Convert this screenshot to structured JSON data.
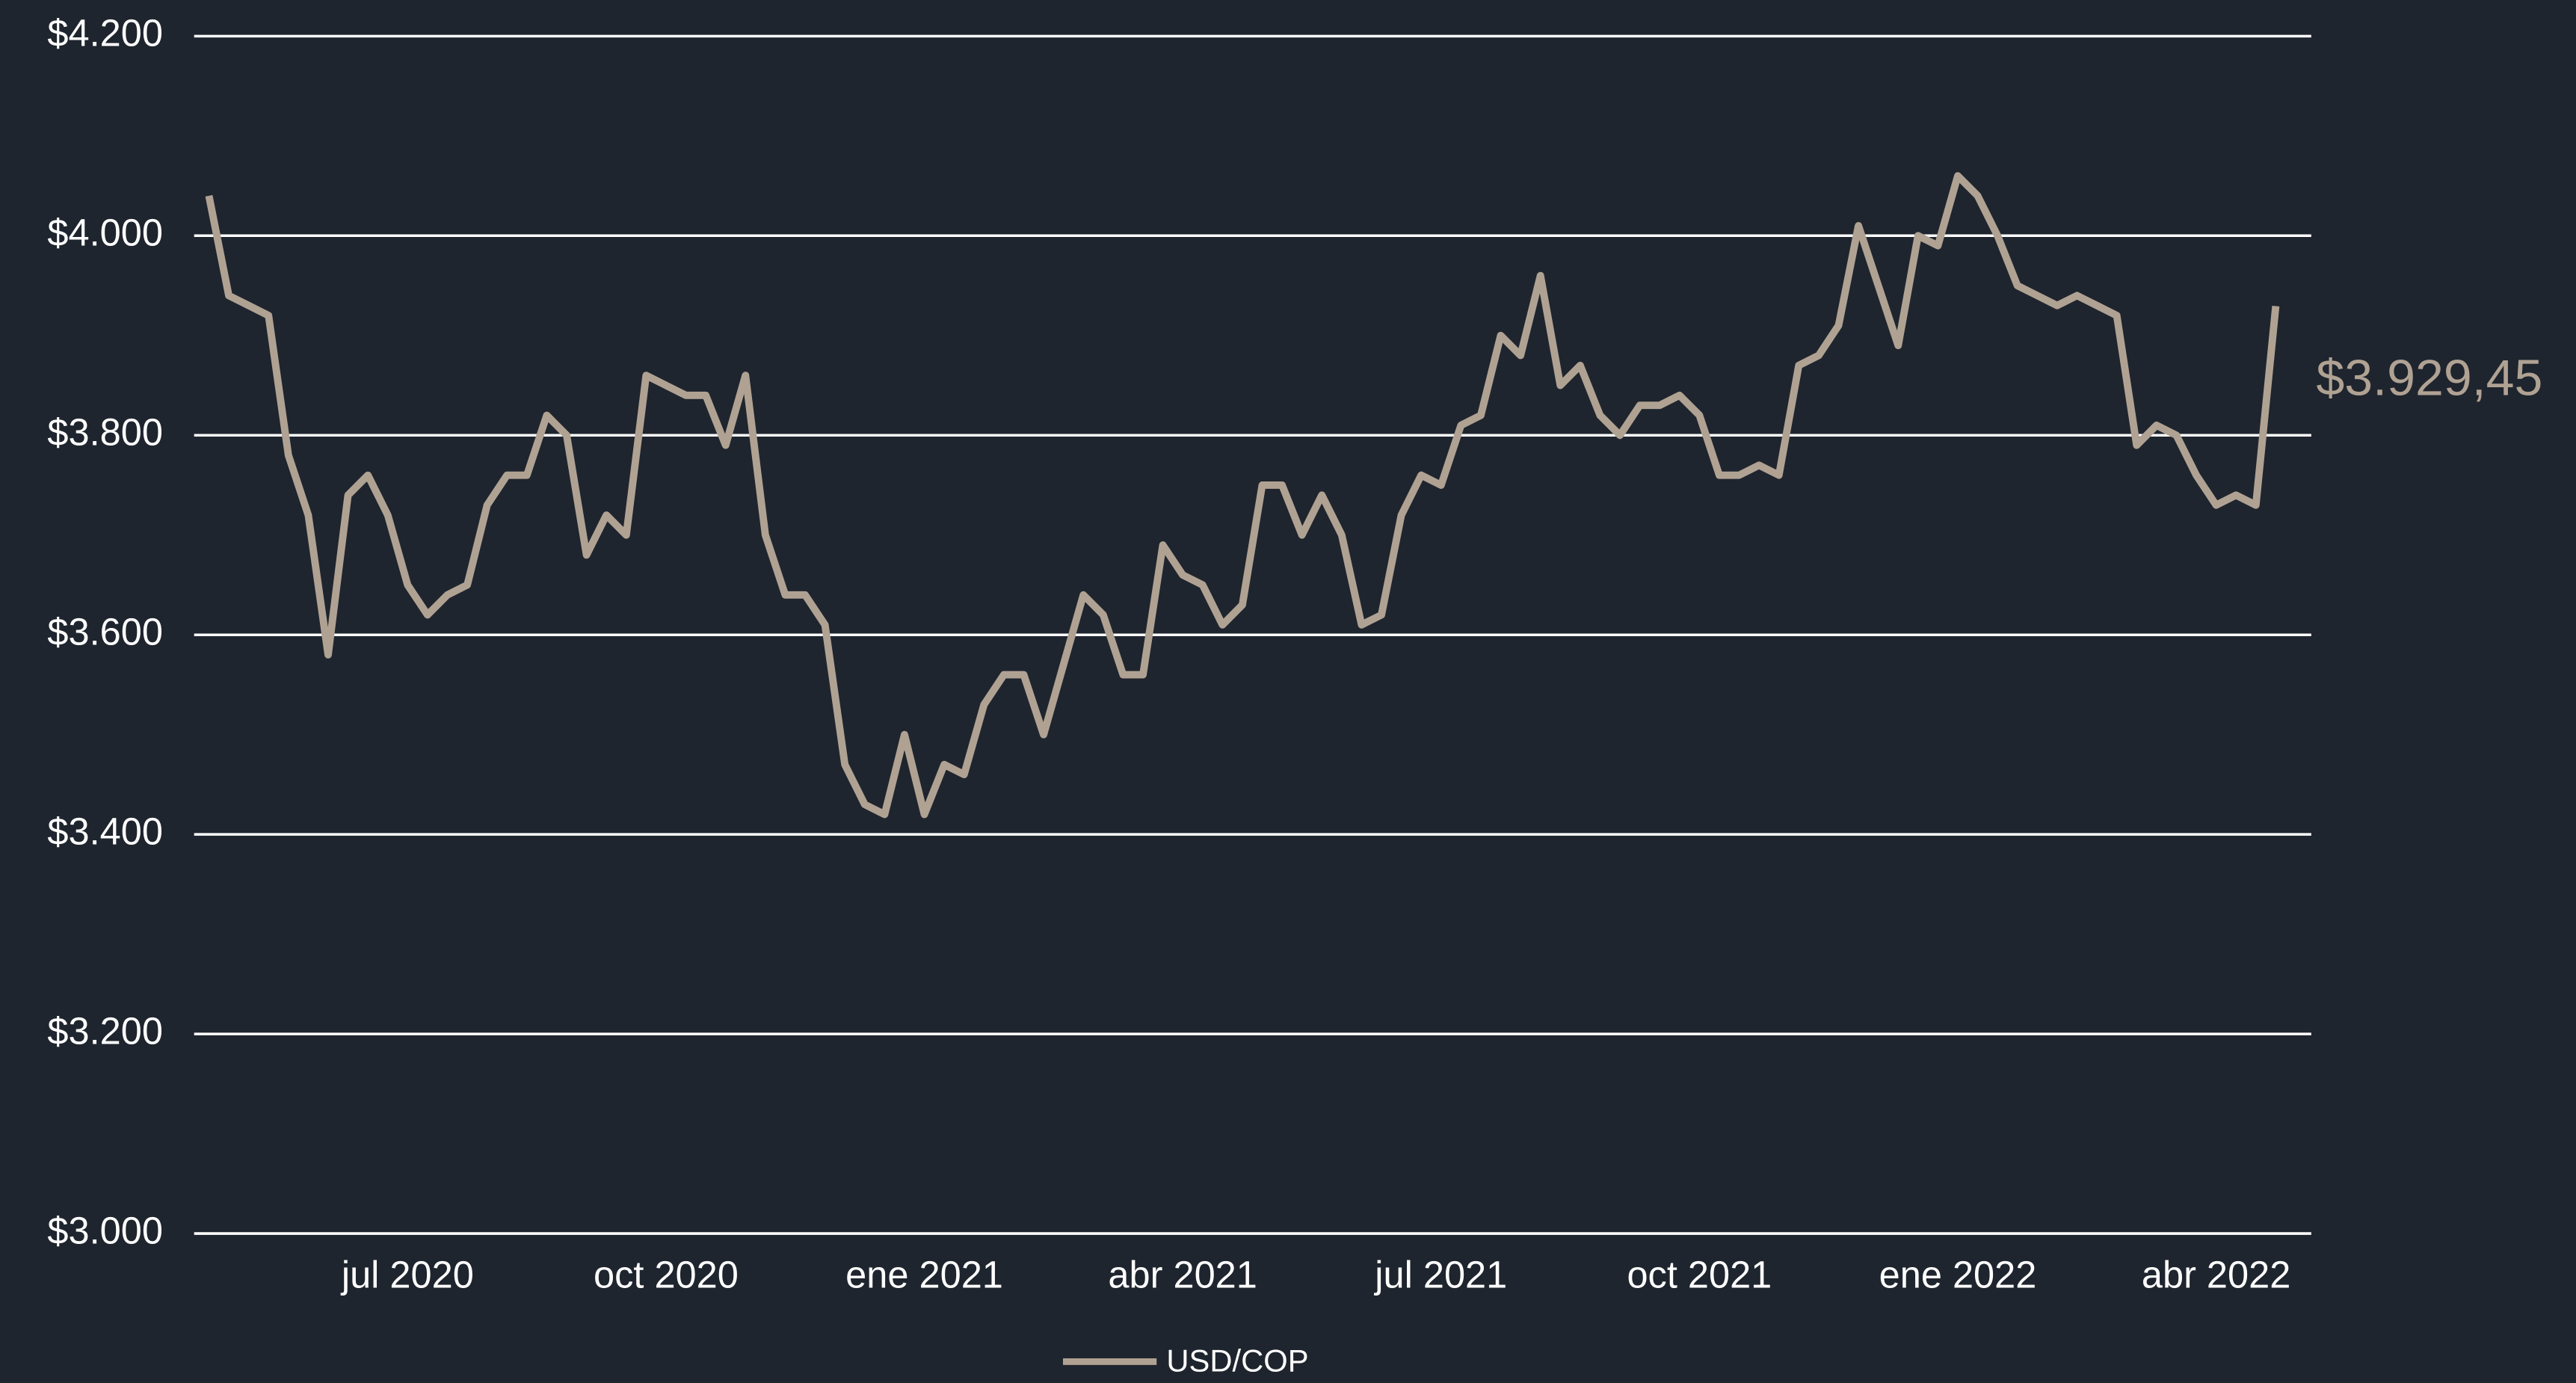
{
  "chart_data": {
    "type": "line",
    "categories": [
      null,
      null,
      null,
      null,
      null,
      null,
      null,
      null,
      null,
      null,
      "jul 2020",
      null,
      null,
      null,
      null,
      null,
      null,
      null,
      null,
      null,
      null,
      null,
      null,
      "oct 2020",
      null,
      null,
      null,
      null,
      null,
      null,
      null,
      null,
      null,
      null,
      null,
      null,
      "ene 2021",
      null,
      null,
      null,
      null,
      null,
      null,
      null,
      null,
      null,
      null,
      null,
      null,
      "abr 2021",
      null,
      null,
      null,
      null,
      null,
      null,
      null,
      null,
      null,
      null,
      null,
      null,
      "jul 2021",
      null,
      null,
      null,
      null,
      null,
      null,
      null,
      null,
      null,
      null,
      null,
      null,
      "oct 2021",
      null,
      null,
      null,
      null,
      null,
      null,
      null,
      null,
      null,
      null,
      null,
      null,
      "ene 2022",
      null,
      null,
      null,
      null,
      null,
      null,
      null,
      null,
      null,
      null,
      null,
      null,
      "abr 2022",
      null,
      null,
      null
    ],
    "series": [
      {
        "name": "USD/COP",
        "color": "#b0a293",
        "values": [
          4040,
          3940,
          3930,
          3920,
          3780,
          3720,
          3580,
          3740,
          3760,
          3720,
          3650,
          3620,
          3640,
          3650,
          3730,
          3760,
          3760,
          3820,
          3800,
          3680,
          3720,
          3700,
          3860,
          3850,
          3840,
          3840,
          3790,
          3860,
          3700,
          3640,
          3640,
          3610,
          3470,
          3430,
          3420,
          3500,
          3420,
          3470,
          3460,
          3530,
          3560,
          3560,
          3500,
          3570,
          3640,
          3620,
          3560,
          3560,
          3690,
          3660,
          3650,
          3610,
          3630,
          3750,
          3750,
          3700,
          3740,
          3700,
          3610,
          3620,
          3720,
          3760,
          3750,
          3810,
          3820,
          3900,
          3880,
          3960,
          3850,
          3870,
          3820,
          3800,
          3830,
          3830,
          3840,
          3820,
          3760,
          3760,
          3770,
          3760,
          3870,
          3880,
          3910,
          4010,
          3950,
          3890,
          4000,
          3990,
          4060,
          4040,
          4000,
          3950,
          3940,
          3930,
          3940,
          3930,
          3920,
          3790,
          3810,
          3800,
          3760,
          3730,
          3740,
          3730,
          3929.45
        ],
        "value_labels": [
          null,
          null,
          null,
          null,
          null,
          null,
          null,
          null,
          null,
          null,
          null,
          null,
          null,
          null,
          null,
          null,
          null,
          null,
          null,
          null,
          null,
          null,
          null,
          null,
          null,
          null,
          null,
          null,
          null,
          null,
          null,
          null,
          null,
          null,
          null,
          null,
          null,
          null,
          null,
          null,
          null,
          null,
          null,
          null,
          null,
          null,
          null,
          null,
          null,
          null,
          null,
          null,
          null,
          null,
          null,
          null,
          null,
          null,
          null,
          null,
          null,
          null,
          null,
          null,
          null,
          null,
          null,
          null,
          null,
          null,
          null,
          null,
          null,
          null,
          null,
          null,
          null,
          null,
          null,
          null,
          null,
          null,
          null,
          null,
          null,
          null,
          null,
          null,
          null,
          null,
          null,
          null,
          null,
          null,
          null,
          null,
          null,
          null,
          null,
          null,
          null,
          null,
          null,
          null,
          "$3.929,45"
        ]
      }
    ],
    "ylim": [
      3000,
      4200
    ],
    "yticks": [
      {
        "value": 3000,
        "label": "$3.000"
      },
      {
        "value": 3200,
        "label": "$3.200"
      },
      {
        "value": 3400,
        "label": "$3.400"
      },
      {
        "value": 3600,
        "label": "$3.600"
      },
      {
        "value": 3800,
        "label": "$3.800"
      },
      {
        "value": 4000,
        "label": "$4.000"
      },
      {
        "value": 4200,
        "label": "$4.200"
      }
    ],
    "grid": true,
    "legend": "bottom"
  }
}
